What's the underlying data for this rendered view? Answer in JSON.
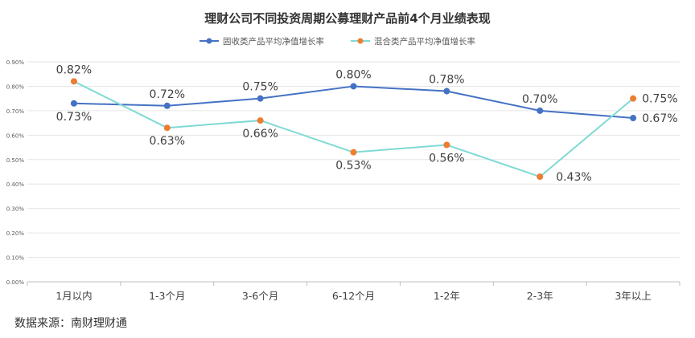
{
  "source_text": "数据来源：南财理财通",
  "chart_data": {
    "type": "line",
    "title": "理财公司不同投资周期公募理财产品前4个月业绩表现",
    "categories": [
      "1月以内",
      "1-3个月",
      "3-6个月",
      "6-12个月",
      "1-2年",
      "2-3年",
      "3年以上"
    ],
    "series": [
      {
        "name": "固收类产品平均净值增长率",
        "values": [
          0.73,
          0.72,
          0.75,
          0.8,
          0.78,
          0.7,
          0.67
        ],
        "labels": [
          "0.73%",
          "0.72%",
          "0.75%",
          "0.80%",
          "0.78%",
          "0.70%",
          "0.67%"
        ],
        "line_color": "#4472c4",
        "marker_color": "#4472c4"
      },
      {
        "name": "混合类产品平均净值增长率",
        "values": [
          0.82,
          0.63,
          0.66,
          0.53,
          0.56,
          0.43,
          0.75
        ],
        "labels": [
          "0.82%",
          "0.63%",
          "0.66%",
          "0.53%",
          "0.56%",
          "0.43%",
          "0.75%"
        ],
        "line_color": "#7fdad4",
        "marker_color": "#ed7d31"
      }
    ],
    "yticks": [
      "0.00%",
      "0.10%",
      "0.20%",
      "0.30%",
      "0.40%",
      "0.50%",
      "0.60%",
      "0.70%",
      "0.80%",
      "0.90%"
    ],
    "ylim": [
      0,
      0.9
    ],
    "grid": true,
    "legend_position": "top-center"
  }
}
